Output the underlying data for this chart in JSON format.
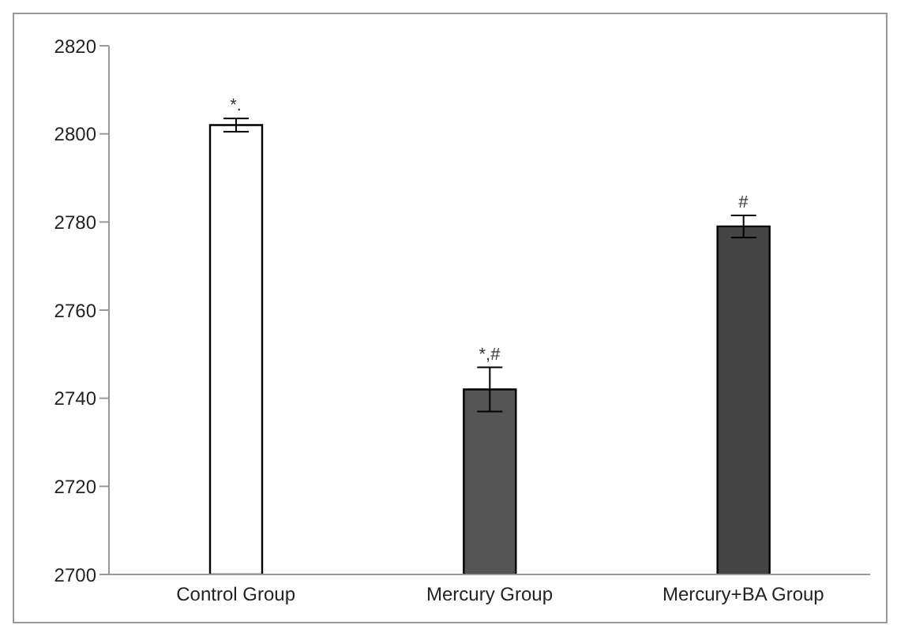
{
  "chart_data": {
    "type": "bar",
    "categories": [
      "Control Group",
      "Mercury  Group",
      "Mercury+BA Group"
    ],
    "values": [
      2802,
      2742,
      2779
    ],
    "colors": [
      "#ffffff",
      "#555555",
      "#444444"
    ],
    "errors": [
      1.5,
      5,
      2.5
    ],
    "ylim": [
      2700,
      2820
    ],
    "yticks": [
      2700,
      2720,
      2740,
      2760,
      2780,
      2800,
      2820
    ],
    "grid": false,
    "annotations": [
      {
        "text": "*.",
        "x": "Control Group",
        "y": 2803.5
      },
      {
        "text": "*,#",
        "x": "Mercury  Group",
        "y": 2747
      },
      {
        "text": "#",
        "x": "Mercury+BA Group",
        "y": 2781.5
      }
    ]
  }
}
